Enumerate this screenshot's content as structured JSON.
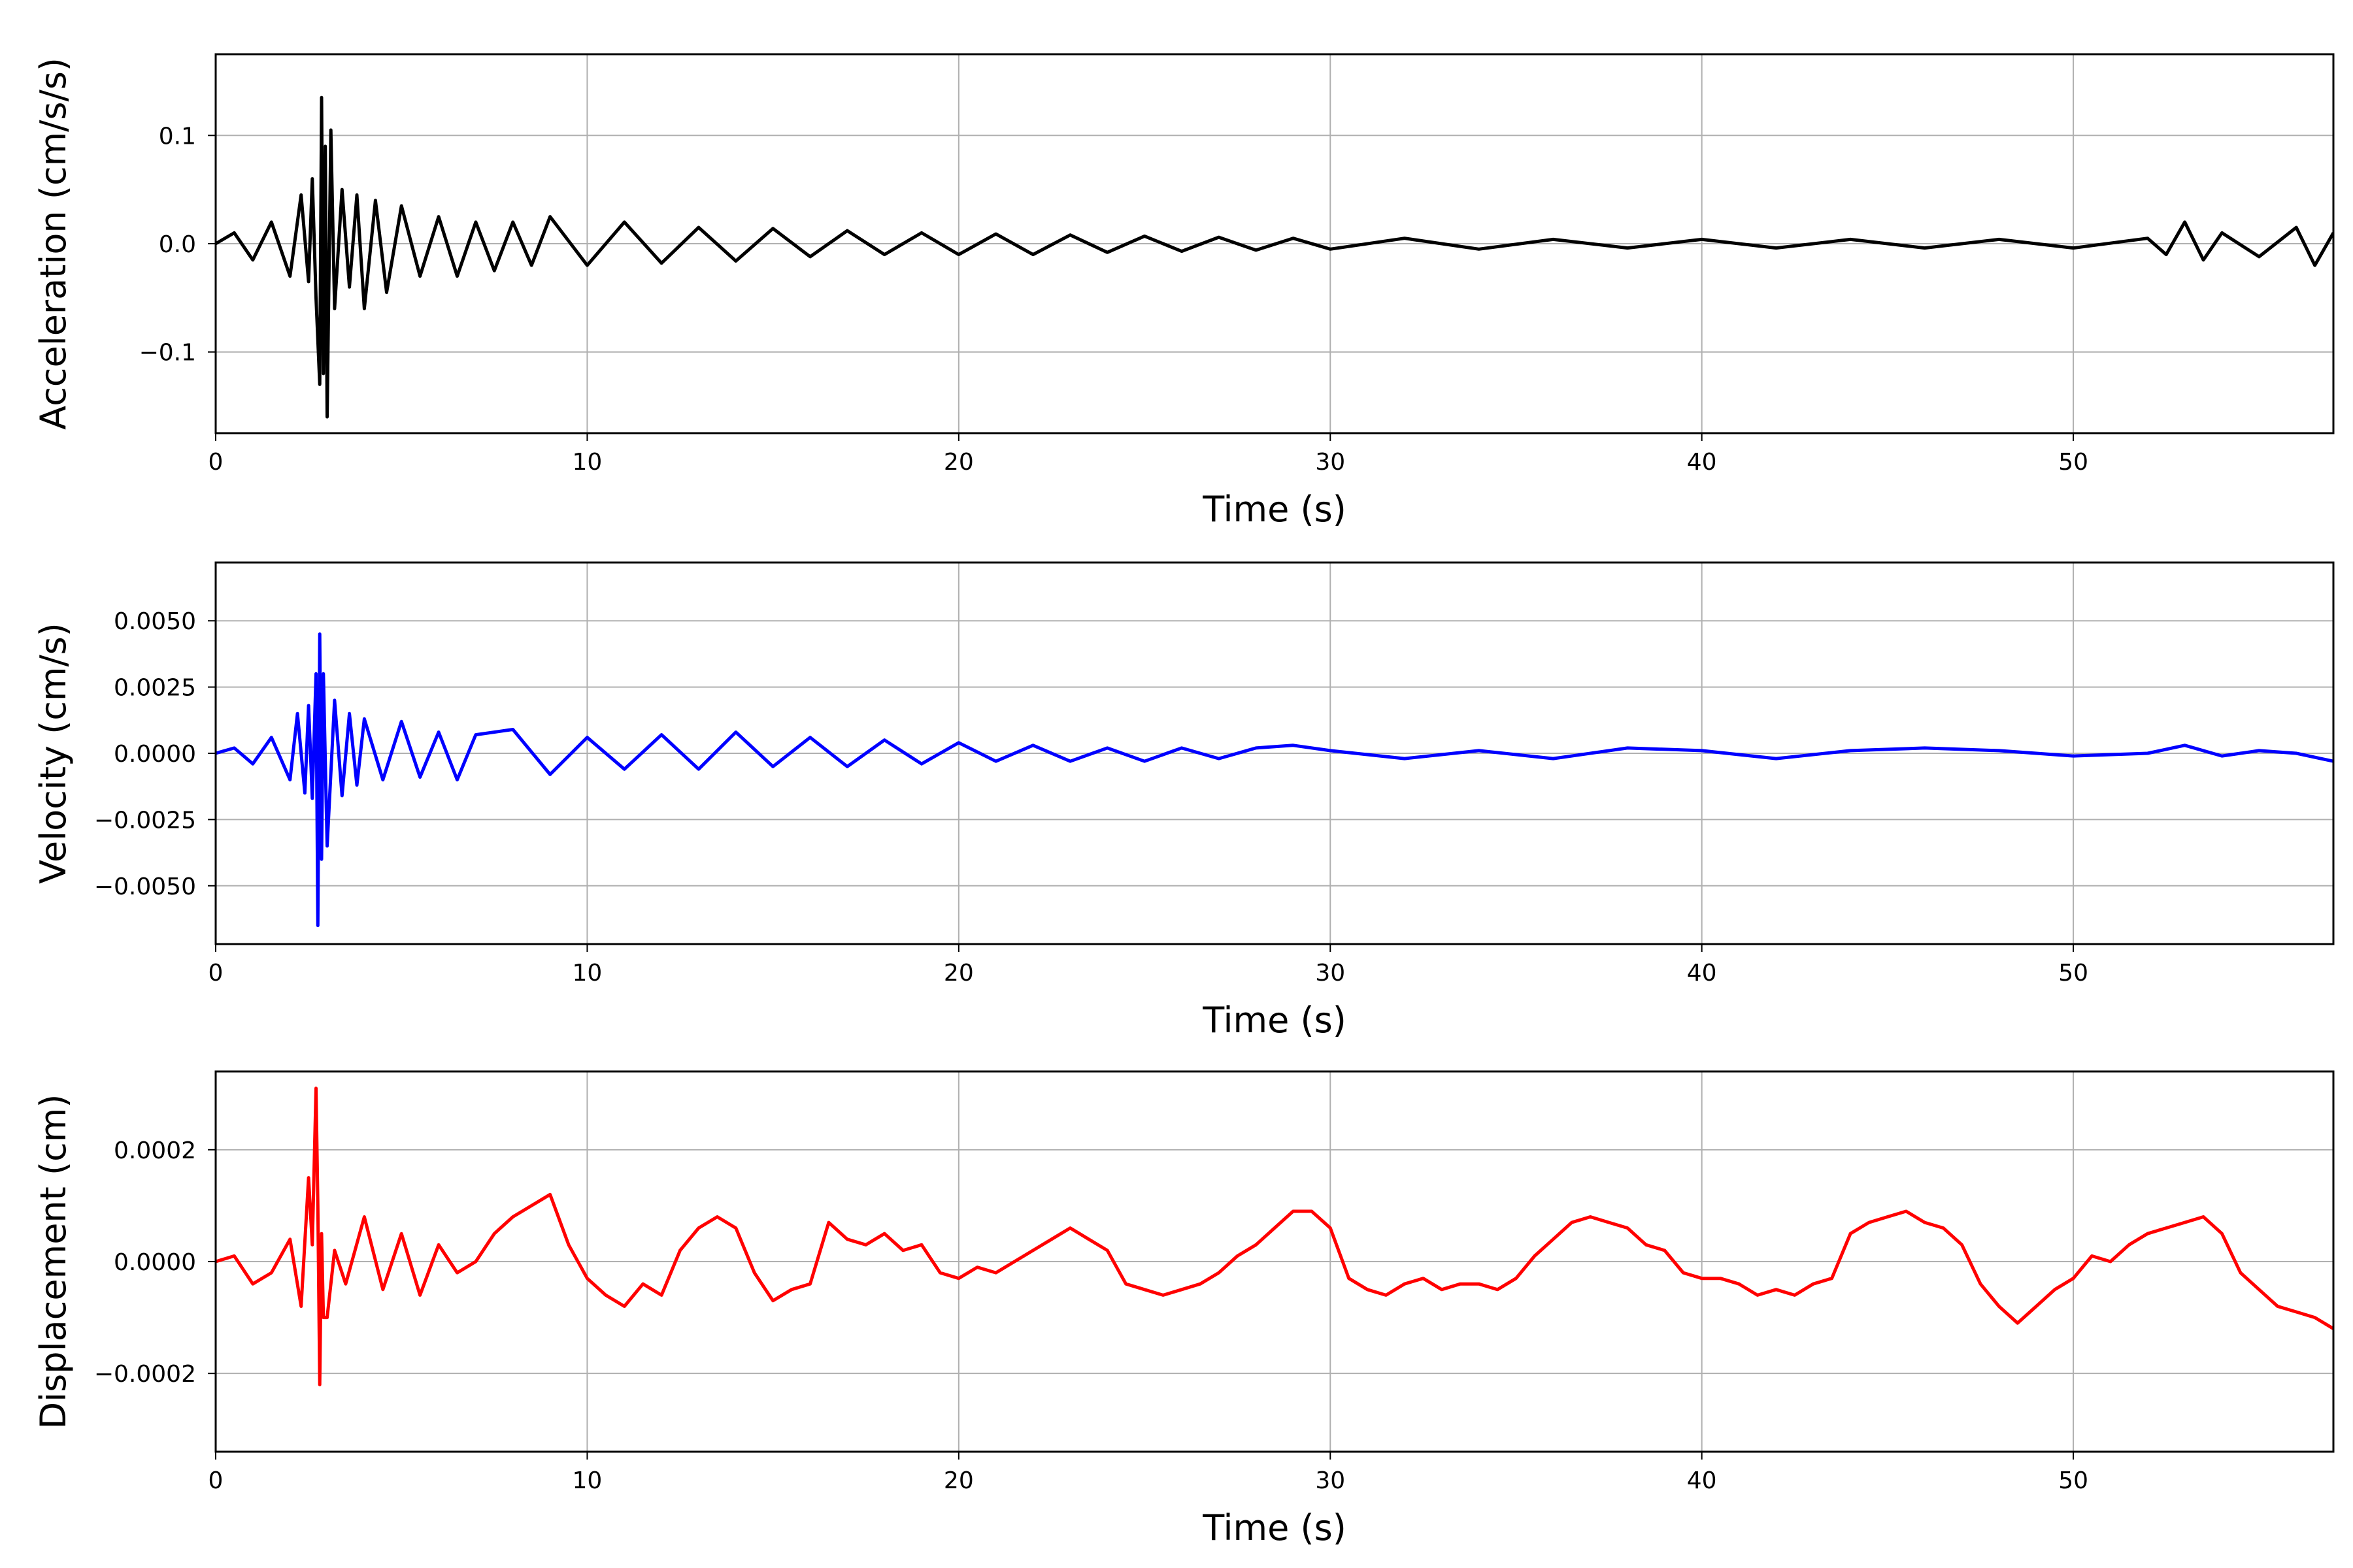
{
  "chart_data": [
    {
      "type": "line",
      "xlabel": "Time (s)",
      "ylabel": "Acceleration (cm/s/s)",
      "xlim": [
        0,
        57
      ],
      "ylim": [
        -0.175,
        0.175
      ],
      "xticks": [
        0,
        10,
        20,
        30,
        40,
        50
      ],
      "xtick_labels": [
        "0",
        "10",
        "20",
        "30",
        "40",
        "50"
      ],
      "yticks": [
        0.1,
        0.0,
        -0.1
      ],
      "ytick_labels": [
        "0.1",
        "0.0",
        "−0.1"
      ],
      "grid": true,
      "color": "#000000",
      "series": [
        {
          "x": [
            0,
            0.5,
            1,
            1.5,
            2,
            2.3,
            2.5,
            2.6,
            2.7,
            2.8,
            2.85,
            2.9,
            2.95,
            3.0,
            3.1,
            3.2,
            3.4,
            3.6,
            3.8,
            4,
            4.3,
            4.6,
            5,
            5.5,
            6,
            6.5,
            7,
            7.5,
            8,
            8.5,
            9,
            10,
            11,
            12,
            13,
            14,
            15,
            16,
            17,
            18,
            19,
            20,
            21,
            22,
            23,
            24,
            25,
            26,
            27,
            28,
            29,
            30,
            32,
            34,
            36,
            38,
            40,
            42,
            44,
            46,
            48,
            50,
            52,
            52.5,
            53,
            53.5,
            54,
            55,
            56,
            56.5,
            57
          ],
          "y": [
            0.0,
            0.01,
            -0.015,
            0.02,
            -0.03,
            0.045,
            -0.035,
            0.06,
            -0.05,
            -0.13,
            0.135,
            -0.12,
            0.09,
            -0.16,
            0.105,
            -0.06,
            0.05,
            -0.04,
            0.045,
            -0.06,
            0.04,
            -0.045,
            0.035,
            -0.03,
            0.025,
            -0.03,
            0.02,
            -0.025,
            0.02,
            -0.02,
            0.025,
            -0.02,
            0.02,
            -0.018,
            0.015,
            -0.016,
            0.014,
            -0.012,
            0.012,
            -0.01,
            0.01,
            -0.01,
            0.009,
            -0.01,
            0.008,
            -0.008,
            0.007,
            -0.007,
            0.006,
            -0.006,
            0.005,
            -0.005,
            0.005,
            -0.005,
            0.004,
            -0.004,
            0.004,
            -0.004,
            0.004,
            -0.004,
            0.004,
            -0.004,
            0.005,
            -0.01,
            0.02,
            -0.015,
            0.01,
            -0.012,
            0.015,
            -0.02,
            0.01
          ]
        }
      ]
    },
    {
      "type": "line",
      "xlabel": "Time (s)",
      "ylabel": "Velocity (cm/s)",
      "xlim": [
        0,
        57
      ],
      "ylim": [
        -0.0072,
        0.0072
      ],
      "xticks": [
        0,
        10,
        20,
        30,
        40,
        50
      ],
      "xtick_labels": [
        "0",
        "10",
        "20",
        "30",
        "40",
        "50"
      ],
      "yticks": [
        0.005,
        0.0025,
        0.0,
        -0.0025,
        -0.005
      ],
      "ytick_labels": [
        "0.0050",
        "0.0025",
        "0.0000",
        "−0.0025",
        "−0.0050"
      ],
      "grid": true,
      "color": "#0000ff",
      "series": [
        {
          "x": [
            0,
            0.5,
            1,
            1.5,
            2,
            2.2,
            2.4,
            2.5,
            2.6,
            2.7,
            2.75,
            2.8,
            2.85,
            2.9,
            3.0,
            3.2,
            3.4,
            3.6,
            3.8,
            4,
            4.5,
            5,
            5.5,
            6,
            6.5,
            7,
            8,
            9,
            10,
            11,
            12,
            13,
            14,
            15,
            16,
            17,
            18,
            19,
            20,
            21,
            22,
            23,
            24,
            25,
            26,
            27,
            28,
            29,
            30,
            32,
            34,
            36,
            38,
            40,
            42,
            44,
            46,
            48,
            50,
            52,
            53,
            54,
            55,
            56,
            57
          ],
          "y": [
            0.0,
            0.0002,
            -0.0004,
            0.0006,
            -0.001,
            0.0015,
            -0.0015,
            0.0018,
            -0.0017,
            0.003,
            -0.0065,
            0.0045,
            -0.004,
            0.003,
            -0.0035,
            0.002,
            -0.0016,
            0.0015,
            -0.0012,
            0.0013,
            -0.001,
            0.0012,
            -0.0009,
            0.0008,
            -0.001,
            0.0007,
            0.0009,
            -0.0008,
            0.0006,
            -0.0006,
            0.0007,
            -0.0006,
            0.0008,
            -0.0005,
            0.0006,
            -0.0005,
            0.0005,
            -0.0004,
            0.0004,
            -0.0003,
            0.0003,
            -0.0003,
            0.0002,
            -0.0003,
            0.0002,
            -0.0002,
            0.0002,
            0.0003,
            0.0001,
            -0.0002,
            0.0001,
            -0.0002,
            0.0002,
            0.0001,
            -0.0002,
            0.0001,
            0.0002,
            0.0001,
            -0.0001,
            0.0,
            0.0003,
            -0.0001,
            0.0001,
            0.0,
            -0.0003
          ]
        }
      ]
    },
    {
      "type": "line",
      "xlabel": "Time (s)",
      "ylabel": "Displacement (cm)",
      "xlim": [
        0,
        57
      ],
      "ylim": [
        -0.00034,
        0.00034
      ],
      "xticks": [
        0,
        10,
        20,
        30,
        40,
        50
      ],
      "xtick_labels": [
        "0",
        "10",
        "20",
        "30",
        "40",
        "50"
      ],
      "yticks": [
        0.0002,
        0.0,
        -0.0002
      ],
      "ytick_labels": [
        "0.0002",
        "0.0000",
        "−0.0002"
      ],
      "grid": true,
      "color": "#ff0000",
      "series": [
        {
          "x": [
            0,
            0.5,
            1,
            1.5,
            2,
            2.3,
            2.5,
            2.6,
            2.7,
            2.75,
            2.8,
            2.85,
            2.9,
            3.0,
            3.2,
            3.5,
            4,
            4.5,
            5,
            5.5,
            6,
            6.5,
            7,
            7.5,
            8,
            8.5,
            9,
            9.5,
            10,
            10.5,
            11,
            11.5,
            12,
            12.5,
            13,
            13.5,
            14,
            14.5,
            15,
            15.5,
            16,
            16.5,
            17,
            17.5,
            18,
            18.5,
            19,
            19.5,
            20,
            20.5,
            21,
            21.5,
            22,
            22.5,
            23,
            23.5,
            24,
            24.5,
            25,
            25.5,
            26,
            26.5,
            27,
            27.5,
            28,
            28.5,
            29,
            29.5,
            30,
            30.5,
            31,
            31.5,
            32,
            32.5,
            33,
            33.5,
            34,
            34.5,
            35,
            35.5,
            36,
            36.5,
            37,
            37.5,
            38,
            38.5,
            39,
            39.5,
            40,
            40.5,
            41,
            41.5,
            42,
            42.5,
            43,
            43.5,
            44,
            44.5,
            45,
            45.5,
            46,
            46.5,
            47,
            47.5,
            48,
            48.5,
            49,
            49.5,
            50,
            50.5,
            51,
            51.5,
            52,
            52.5,
            53,
            53.5,
            54,
            54.5,
            55,
            55.5,
            56,
            56.5,
            57
          ],
          "y": [
            0.0,
            1e-05,
            -4e-05,
            -2e-05,
            4e-05,
            -8e-05,
            0.00015,
            3e-05,
            0.00031,
            0.0001,
            -0.00022,
            5e-05,
            -0.0001,
            -0.0001,
            2e-05,
            -4e-05,
            8e-05,
            -5e-05,
            5e-05,
            -6e-05,
            3e-05,
            -2e-05,
            0.0,
            5e-05,
            8e-05,
            0.0001,
            0.00012,
            3e-05,
            -3e-05,
            -6e-05,
            -8e-05,
            -4e-05,
            -6e-05,
            2e-05,
            6e-05,
            8e-05,
            6e-05,
            -2e-05,
            -7e-05,
            -5e-05,
            -4e-05,
            7e-05,
            4e-05,
            3e-05,
            5e-05,
            2e-05,
            3e-05,
            -2e-05,
            -3e-05,
            -1e-05,
            -2e-05,
            0.0,
            2e-05,
            4e-05,
            6e-05,
            4e-05,
            2e-05,
            -4e-05,
            -5e-05,
            -6e-05,
            -5e-05,
            -4e-05,
            -2e-05,
            1e-05,
            3e-05,
            6e-05,
            9e-05,
            9e-05,
            6e-05,
            -3e-05,
            -5e-05,
            -6e-05,
            -4e-05,
            -3e-05,
            -5e-05,
            -4e-05,
            -4e-05,
            -5e-05,
            -3e-05,
            1e-05,
            4e-05,
            7e-05,
            8e-05,
            7e-05,
            6e-05,
            3e-05,
            2e-05,
            -2e-05,
            -3e-05,
            -3e-05,
            -4e-05,
            -6e-05,
            -5e-05,
            -6e-05,
            -4e-05,
            -3e-05,
            5e-05,
            7e-05,
            8e-05,
            9e-05,
            7e-05,
            6e-05,
            3e-05,
            -4e-05,
            -8e-05,
            -0.00011,
            -8e-05,
            -5e-05,
            -3e-05,
            1e-05,
            0.0,
            3e-05,
            5e-05,
            6e-05,
            7e-05,
            8e-05,
            5e-05,
            -2e-05,
            -5e-05,
            -8e-05,
            -9e-05,
            -0.0001,
            -0.00012
          ]
        }
      ]
    }
  ]
}
